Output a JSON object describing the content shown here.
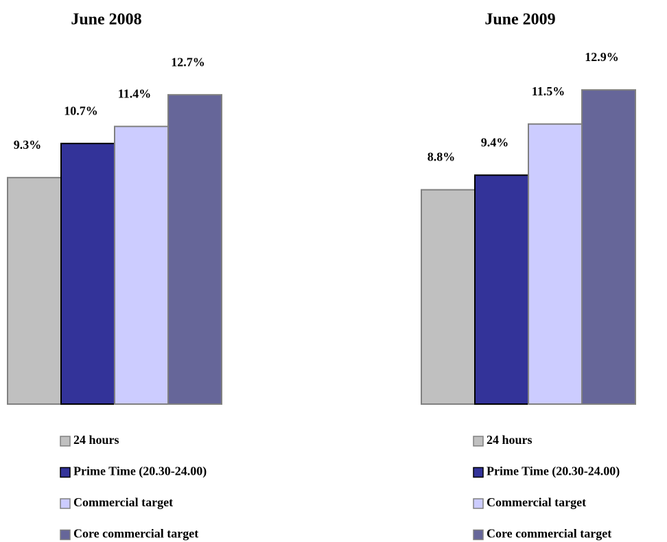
{
  "chart_data": [
    {
      "type": "bar",
      "title": "June 2008",
      "categories": [
        "24 hours",
        "Prime Time (20.30-24.00)",
        "Commercial target",
        "Core commercial target"
      ],
      "values": [
        9.3,
        10.7,
        11.4,
        12.7
      ],
      "value_labels": [
        "9.3%",
        "10.7%",
        "11.4%",
        "12.7%"
      ],
      "colors": [
        "#c0c0c0",
        "#333399",
        "#ccccff",
        "#666699"
      ]
    },
    {
      "type": "bar",
      "title": "June 2009",
      "categories": [
        "24 hours",
        "Prime Time (20.30-24.00)",
        "Commercial target",
        "Core commercial target"
      ],
      "values": [
        8.8,
        9.4,
        11.5,
        12.9
      ],
      "value_labels": [
        "8.8%",
        "9.4%",
        "11.5%",
        "12.9%"
      ],
      "colors": [
        "#c0c0c0",
        "#333399",
        "#ccccff",
        "#666699"
      ]
    }
  ]
}
